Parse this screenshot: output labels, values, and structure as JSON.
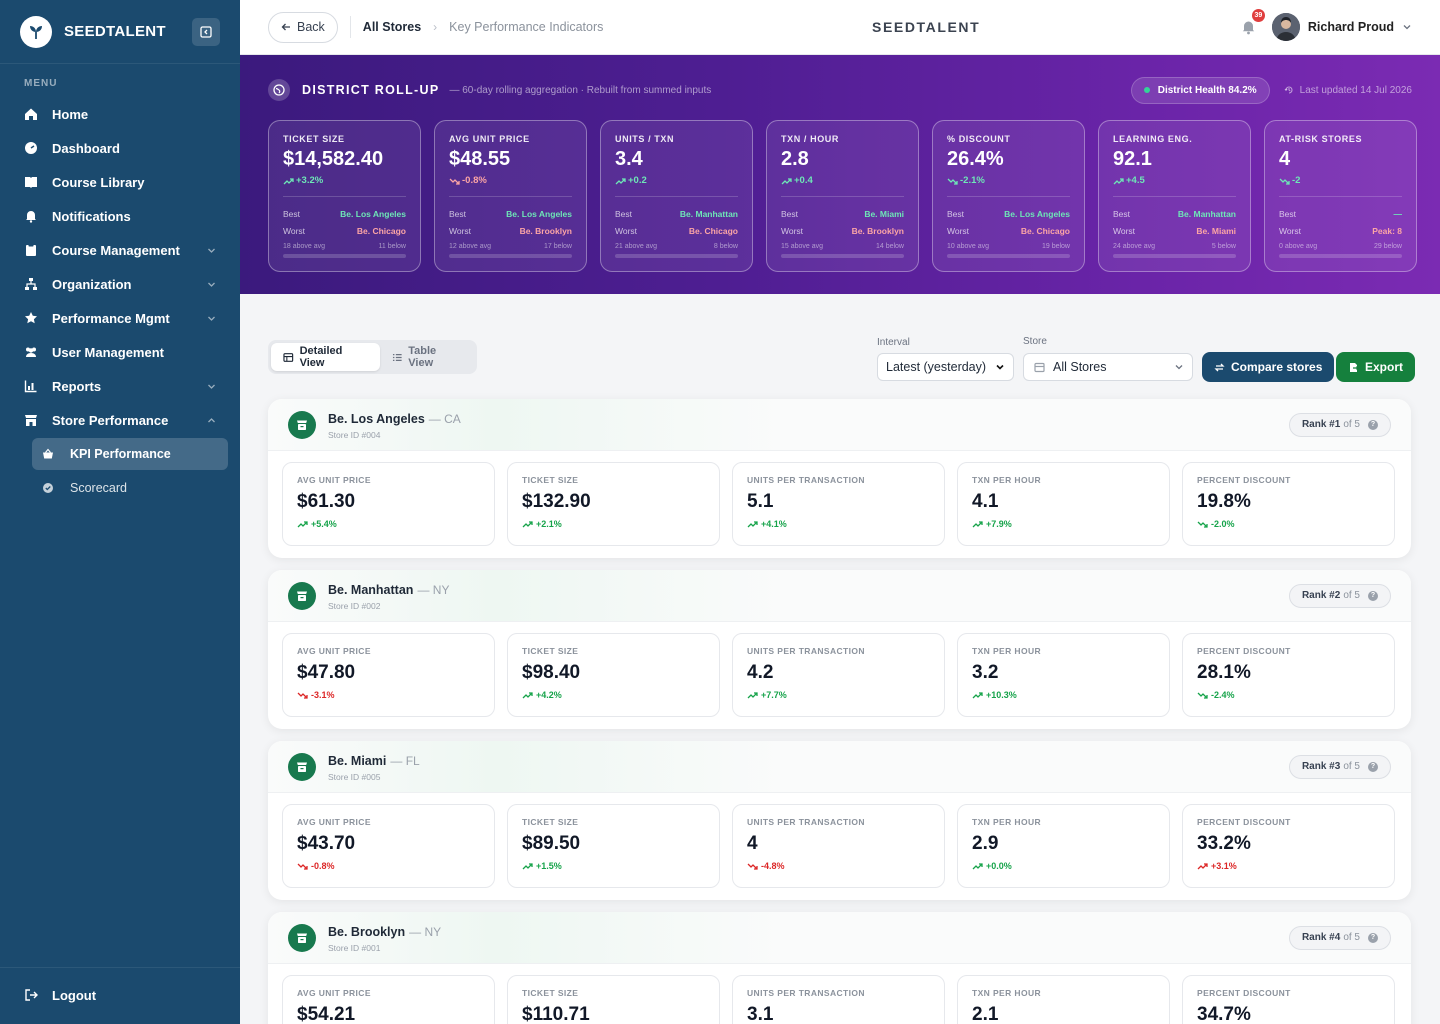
{
  "sidebar": {
    "brand": "SEEDTALENT",
    "menu_label": "MENU",
    "items": [
      {
        "label": "Home",
        "icon": "home-icon"
      },
      {
        "label": "Dashboard",
        "icon": "dashboard-icon"
      },
      {
        "label": "Course Library",
        "icon": "book-icon"
      },
      {
        "label": "Notifications",
        "icon": "bell-icon"
      },
      {
        "label": "Course Management",
        "icon": "clipboard-icon",
        "expandable": true
      },
      {
        "label": "Organization",
        "icon": "sitemap-icon",
        "expandable": true
      },
      {
        "label": "Performance Mgmt",
        "icon": "star-icon",
        "expandable": true
      },
      {
        "label": "User Management",
        "icon": "users-icon"
      },
      {
        "label": "Reports",
        "icon": "chart-icon",
        "expandable": true
      },
      {
        "label": "Store Performance",
        "icon": "store-icon",
        "expanded": true
      }
    ],
    "sub_items": [
      {
        "label": "KPI Performance",
        "active": true
      },
      {
        "label": "Scorecard",
        "active": false
      }
    ],
    "logout": "Logout"
  },
  "topbar": {
    "back": "Back",
    "crumb_root": "All Stores",
    "crumb_current": "Key Performance Indicators",
    "brand": "SEEDTALENT",
    "notification_count": "39",
    "user_name": "Richard Proud"
  },
  "hero": {
    "title": "DISTRICT ROLL-UP",
    "subtitle": "— 60-day rolling aggregation · Rebuilt from summed inputs",
    "health": "District Health 84.2%",
    "updated": "Last updated 14 Jul 2026",
    "best_label": "Best",
    "worst_label": "Worst",
    "kpis": [
      {
        "label": "TICKET SIZE",
        "value": "$14,582.40",
        "delta": "+3.2%",
        "trend": "up",
        "best": "Be. Los Angeles",
        "worst": "Be. Chicago",
        "above": "18 above avg",
        "below": "11 below"
      },
      {
        "label": "AVG UNIT PRICE",
        "value": "$48.55",
        "delta": "-0.8%",
        "trend": "down",
        "best": "Be. Los Angeles",
        "worst": "Be. Brooklyn",
        "above": "12 above avg",
        "below": "17 below"
      },
      {
        "label": "UNITS / TXN",
        "value": "3.4",
        "delta": "+0.2",
        "trend": "up",
        "best": "Be. Manhattan",
        "worst": "Be. Chicago",
        "above": "21 above avg",
        "below": "8 below"
      },
      {
        "label": "TXN / HOUR",
        "value": "2.8",
        "delta": "+0.4",
        "trend": "up",
        "best": "Be. Miami",
        "worst": "Be. Brooklyn",
        "above": "15 above avg",
        "below": "14 below"
      },
      {
        "label": "% DISCOUNT",
        "value": "26.4%",
        "delta": "-2.1%",
        "trend": "down-good",
        "best": "Be. Los Angeles",
        "worst": "Be. Chicago",
        "above": "10 above avg",
        "below": "19 below"
      },
      {
        "label": "LEARNING ENG.",
        "value": "92.1",
        "delta": "+4.5",
        "trend": "up",
        "best": "Be. Manhattan",
        "worst": "Be. Miami",
        "above": "24 above avg",
        "below": "5 below"
      },
      {
        "label": "AT-RISK STORES",
        "value": "4",
        "delta": "-2",
        "trend": "down-good",
        "best": "—",
        "worst": "Peak: 8",
        "above": "0 above avg",
        "below": "29 below"
      }
    ]
  },
  "controls": {
    "detailed_view": "Detailed View",
    "table_view": "Table View",
    "interval_label": "Interval",
    "interval_value": "Latest (yesterday)",
    "store_label": "Store",
    "store_value": "All Stores",
    "compare": "Compare stores",
    "export": "Export"
  },
  "colors": {
    "sidebar": "#1b4a6e",
    "hero_start": "#3b1a7d",
    "hero_end": "#7b2bb3",
    "compare_btn": "#1b4a6e",
    "export_btn": "#15803d",
    "store_icon": "#18794e"
  },
  "stores": [
    {
      "name": "Be. Los Angeles",
      "state": "— CA",
      "id": "Store ID #004",
      "rank": "Rank #1",
      "of": "of 5",
      "metrics": [
        {
          "label": "AVG UNIT PRICE",
          "value": "$61.30",
          "delta": "+5.4%",
          "trend": "up",
          "good": true
        },
        {
          "label": "TICKET SIZE",
          "value": "$132.90",
          "delta": "+2.1%",
          "trend": "up",
          "good": true
        },
        {
          "label": "UNITS PER TRANSACTION",
          "value": "5.1",
          "delta": "+4.1%",
          "trend": "up",
          "good": true
        },
        {
          "label": "TXN PER HOUR",
          "value": "4.1",
          "delta": "+7.9%",
          "trend": "up",
          "good": true
        },
        {
          "label": "PERCENT DISCOUNT",
          "value": "19.8%",
          "delta": "-2.0%",
          "trend": "down",
          "good": true
        }
      ]
    },
    {
      "name": "Be. Manhattan",
      "state": "— NY",
      "id": "Store ID #002",
      "rank": "Rank #2",
      "of": "of 5",
      "metrics": [
        {
          "label": "AVG UNIT PRICE",
          "value": "$47.80",
          "delta": "-3.1%",
          "trend": "down",
          "good": false
        },
        {
          "label": "TICKET SIZE",
          "value": "$98.40",
          "delta": "+4.2%",
          "trend": "up",
          "good": true
        },
        {
          "label": "UNITS PER TRANSACTION",
          "value": "4.2",
          "delta": "+7.7%",
          "trend": "up",
          "good": true
        },
        {
          "label": "TXN PER HOUR",
          "value": "3.2",
          "delta": "+10.3%",
          "trend": "up",
          "good": true
        },
        {
          "label": "PERCENT DISCOUNT",
          "value": "28.1%",
          "delta": "-2.4%",
          "trend": "down",
          "good": true
        }
      ]
    },
    {
      "name": "Be. Miami",
      "state": "— FL",
      "id": "Store ID #005",
      "rank": "Rank #3",
      "of": "of 5",
      "metrics": [
        {
          "label": "AVG UNIT PRICE",
          "value": "$43.70",
          "delta": "-0.8%",
          "trend": "down",
          "good": false
        },
        {
          "label": "TICKET SIZE",
          "value": "$89.50",
          "delta": "+1.5%",
          "trend": "up",
          "good": true
        },
        {
          "label": "UNITS PER TRANSACTION",
          "value": "4",
          "delta": "-4.8%",
          "trend": "down",
          "good": false
        },
        {
          "label": "TXN PER HOUR",
          "value": "2.9",
          "delta": "+0.0%",
          "trend": "up",
          "good": true
        },
        {
          "label": "PERCENT DISCOUNT",
          "value": "33.2%",
          "delta": "+3.1%",
          "trend": "up",
          "good": false
        }
      ]
    },
    {
      "name": "Be. Brooklyn",
      "state": "— NY",
      "id": "Store ID #001",
      "rank": "Rank #4",
      "of": "of 5",
      "metrics": [
        {
          "label": "AVG UNIT PRICE",
          "value": "$54.21",
          "delta": "",
          "trend": "up",
          "good": true
        },
        {
          "label": "TICKET SIZE",
          "value": "$110.71",
          "delta": "",
          "trend": "up",
          "good": true
        },
        {
          "label": "UNITS PER TRANSACTION",
          "value": "3.1",
          "delta": "",
          "trend": "up",
          "good": true
        },
        {
          "label": "TXN PER HOUR",
          "value": "2.1",
          "delta": "",
          "trend": "up",
          "good": true
        },
        {
          "label": "PERCENT DISCOUNT",
          "value": "34.7%",
          "delta": "",
          "trend": "up",
          "good": true
        }
      ]
    }
  ]
}
